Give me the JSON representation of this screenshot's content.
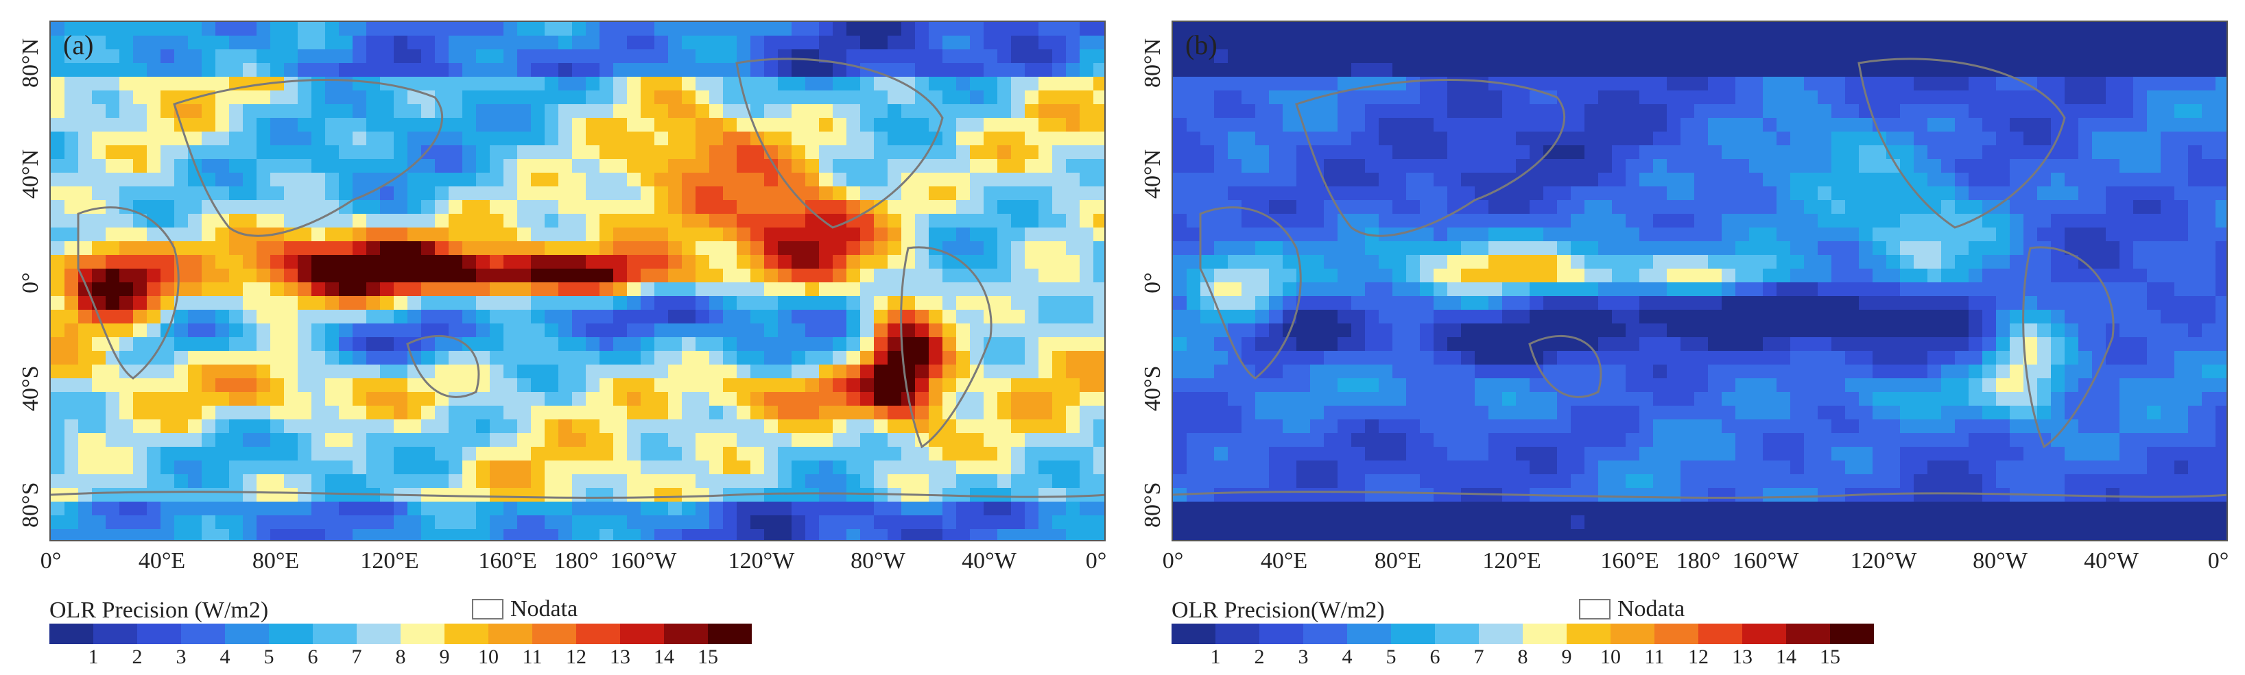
{
  "panels": [
    {
      "label": "(a)",
      "lat_labels": [
        "80°N",
        "40°N",
        "0°",
        "40°S",
        "80°S"
      ],
      "lon_labels": [
        "0°",
        "40°E",
        "80°E",
        "120°E",
        "160°E",
        "180°",
        "160°W",
        "120°W",
        "80°W",
        "40°W",
        "0°"
      ],
      "legend_title": "OLR Precision (W/m2)",
      "nodata_label": "Nodata",
      "variant": "high"
    },
    {
      "label": "(b)",
      "lat_labels": [
        "80°N",
        "40°N",
        "0°",
        "40°S",
        "80°S"
      ],
      "lon_labels": [
        "0°",
        "40°E",
        "80°E",
        "120°E",
        "160°E",
        "180°",
        "160°W",
        "120°W",
        "80°W",
        "40°W",
        "0°"
      ],
      "legend_title": "OLR Precision(W/m2)",
      "nodata_label": "Nodata",
      "variant": "low"
    }
  ],
  "colorbar": {
    "ticks": [
      "1",
      "2",
      "3",
      "4",
      "5",
      "6",
      "7",
      "8",
      "9",
      "10",
      "11",
      "12",
      "13",
      "14",
      "15"
    ],
    "colors": [
      "#1f2f8f",
      "#2b3fb8",
      "#3450d8",
      "#3a68e6",
      "#2f8fe8",
      "#22aae6",
      "#55bff0",
      "#a7d9f2",
      "#fdf7a0",
      "#f9c21c",
      "#f6a21e",
      "#f27a22",
      "#e8461d",
      "#c81a12",
      "#8a0a0a",
      "#4a0000"
    ]
  }
}
